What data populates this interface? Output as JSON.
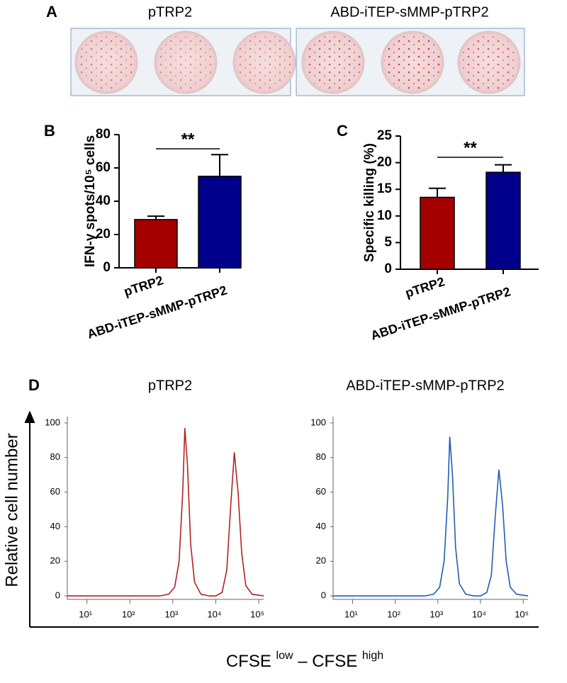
{
  "panel_a": {
    "label": "A",
    "titles": [
      "pTRP2",
      "ABD-iTEP-sMMP-pTRP2"
    ]
  },
  "panel_d": {
    "ylabel": "Relative cell number",
    "xlabel_parts": [
      "CFSE",
      "low",
      "– CFSE",
      "high"
    ]
  },
  "chart_data": [
    {
      "type": "bar",
      "panel": "B",
      "ylabel": "IFN-γ spots/10⁵ cells",
      "categories": [
        "pTRP2",
        "ABD-iTEP-sMMP-pTRP2"
      ],
      "values": [
        29,
        55
      ],
      "errors": [
        2,
        13
      ],
      "colors": [
        "#a40000",
        "#00008b"
      ],
      "ylim": [
        0,
        80
      ],
      "yticks": [
        0,
        20,
        40,
        60,
        80
      ],
      "annotation": "**"
    },
    {
      "type": "bar",
      "panel": "C",
      "ylabel": "Specific killing (%)",
      "categories": [
        "pTRP2",
        "ABD-iTEP-sMMP-pTRP2"
      ],
      "values": [
        13.5,
        18.2
      ],
      "errors": [
        1.7,
        1.4
      ],
      "colors": [
        "#a40000",
        "#00008b"
      ],
      "ylim": [
        0,
        25
      ],
      "yticks": [
        0,
        5,
        10,
        15,
        20,
        25
      ],
      "annotation": "**"
    },
    {
      "type": "line",
      "panel": "D",
      "title": "pTRP2",
      "xlog": true,
      "color": "#b22222",
      "x": [
        3.5,
        100,
        500,
        800,
        1100,
        1400,
        1700,
        1900,
        2200,
        2600,
        3200,
        4500,
        7000,
        10000,
        14000,
        18000,
        22000,
        27000,
        33000,
        40000,
        50000,
        70000,
        130000
      ],
      "values": [
        0,
        0,
        0,
        1,
        5,
        20,
        60,
        97,
        75,
        30,
        8,
        1,
        0,
        0,
        2,
        15,
        50,
        83,
        60,
        25,
        6,
        1,
        0
      ],
      "xlim": [
        3.5,
        130000
      ],
      "ylim": [
        -2,
        102
      ],
      "xticks": [
        {
          "value": 10,
          "label": "10¹"
        },
        {
          "value": 100,
          "label": "10²"
        },
        {
          "value": 1000,
          "label": "10³"
        },
        {
          "value": 10000,
          "label": "10⁴"
        },
        {
          "value": 100000,
          "label": "10⁵"
        }
      ],
      "yticks": [
        0,
        20,
        40,
        60,
        80,
        100
      ]
    },
    {
      "type": "line",
      "title": "ABD-iTEP-sMMP-pTRP2",
      "xlog": true,
      "color": "#1f5fb0",
      "x": [
        3.5,
        100,
        500,
        800,
        1100,
        1400,
        1700,
        1900,
        2200,
        2600,
        3200,
        4500,
        7000,
        10000,
        14000,
        18000,
        22000,
        27000,
        33000,
        40000,
        50000,
        70000,
        130000
      ],
      "values": [
        0,
        0,
        0,
        1,
        5,
        20,
        57,
        92,
        70,
        28,
        7,
        1,
        0,
        0,
        2,
        12,
        45,
        73,
        52,
        20,
        5,
        1,
        0
      ],
      "xlim": [
        3.5,
        130000
      ],
      "ylim": [
        -2,
        102
      ],
      "xticks": [
        {
          "value": 10,
          "label": "10¹"
        },
        {
          "value": 100,
          "label": "10²"
        },
        {
          "value": 1000,
          "label": "10³"
        },
        {
          "value": 10000,
          "label": "10⁴"
        },
        {
          "value": 100000,
          "label": "10⁵"
        }
      ],
      "yticks": [
        0,
        20,
        40,
        60,
        80,
        100
      ]
    }
  ]
}
